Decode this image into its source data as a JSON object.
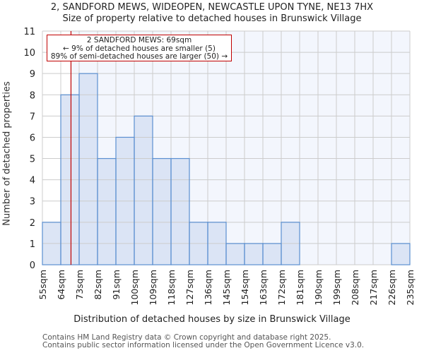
{
  "header": {
    "title_line1": "2, SANDFORD MEWS, WIDEOPEN, NEWCASTLE UPON TYNE, NE13 7HX",
    "title_line2": "Size of property relative to detached houses in Brunswick Village"
  },
  "annotation": {
    "line1": "2 SANDFORD MEWS: 69sqm",
    "line2": "← 9% of detached houses are smaller (5)",
    "line3": "89% of semi-detached houses are larger (50) →"
  },
  "axes": {
    "ylabel": "Number of detached properties",
    "xlabel": "Distribution of detached houses by size in Brunswick Village"
  },
  "footer": {
    "line1": "Contains HM Land Registry data © Crown copyright and database right 2025.",
    "line2": "Contains public sector information licensed under the Open Government Licence v3.0."
  },
  "colors": {
    "bar_fill": "#d6e1f3",
    "bar_edge": "#5b8fd0",
    "marker": "#c00000",
    "grid": "#cccccc",
    "shaded_region": "#f3f6fd"
  },
  "chart_data": {
    "type": "bar",
    "title": "2, SANDFORD MEWS, WIDEOPEN, NEWCASTLE UPON TYNE, NE13 7HX — Size of property relative to detached houses in Brunswick Village",
    "xlabel": "Distribution of detached houses by size in Brunswick Village",
    "ylabel": "Number of detached properties",
    "categories": [
      "55sqm",
      "64sqm",
      "73sqm",
      "82sqm",
      "91sqm",
      "100sqm",
      "109sqm",
      "118sqm",
      "127sqm",
      "136sqm",
      "145sqm",
      "154sqm",
      "163sqm",
      "172sqm",
      "181sqm",
      "190sqm",
      "199sqm",
      "208sqm",
      "217sqm",
      "226sqm",
      "235sqm"
    ],
    "bin_edges": [
      55,
      64,
      73,
      82,
      91,
      100,
      109,
      118,
      127,
      136,
      145,
      154,
      163,
      172,
      181,
      190,
      199,
      208,
      217,
      226,
      235
    ],
    "values": [
      2,
      8,
      9,
      5,
      6,
      7,
      5,
      5,
      2,
      2,
      1,
      1,
      1,
      2,
      0,
      0,
      0,
      0,
      0,
      1
    ],
    "ylim": [
      0,
      11
    ],
    "yticks": [
      0,
      1,
      2,
      3,
      4,
      5,
      6,
      7,
      8,
      9,
      10,
      11
    ],
    "grid": true,
    "marker": {
      "x": 69,
      "label": "2 SANDFORD MEWS: 69sqm"
    }
  }
}
